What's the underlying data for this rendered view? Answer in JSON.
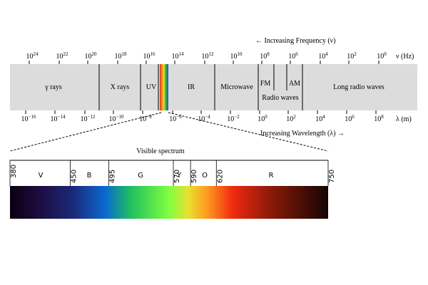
{
  "header": {
    "frequency_arrow": "← Increasing Frequency (ν)",
    "wavelength_arrow": "Increasing Wavelength (λ) →"
  },
  "frequency_axis": {
    "unit": "ν (Hz)",
    "ticks": [
      {
        "base": "10",
        "exp": "24"
      },
      {
        "base": "10",
        "exp": "22"
      },
      {
        "base": "10",
        "exp": "20"
      },
      {
        "base": "10",
        "exp": "18"
      },
      {
        "base": "10",
        "exp": "16"
      },
      {
        "base": "10",
        "exp": "14"
      },
      {
        "base": "10",
        "exp": "12"
      },
      {
        "base": "10",
        "exp": "10"
      },
      {
        "base": "10",
        "exp": "8"
      },
      {
        "base": "10",
        "exp": "6"
      },
      {
        "base": "10",
        "exp": "4"
      },
      {
        "base": "10",
        "exp": "2"
      },
      {
        "base": "10",
        "exp": "0"
      }
    ]
  },
  "wavelength_axis": {
    "unit": "λ (m)",
    "ticks": [
      {
        "base": "10",
        "exp": "−16"
      },
      {
        "base": "10",
        "exp": "−14"
      },
      {
        "base": "10",
        "exp": "−12"
      },
      {
        "base": "10",
        "exp": "−10"
      },
      {
        "base": "10",
        "exp": "−8"
      },
      {
        "base": "10",
        "exp": "−6"
      },
      {
        "base": "10",
        "exp": "−4"
      },
      {
        "base": "10",
        "exp": "−2"
      },
      {
        "base": "10",
        "exp": "0"
      },
      {
        "base": "10",
        "exp": "2"
      },
      {
        "base": "10",
        "exp": "4"
      },
      {
        "base": "10",
        "exp": "6"
      },
      {
        "base": "10",
        "exp": "8"
      }
    ]
  },
  "regions": [
    "γ rays",
    "X rays",
    "UV",
    "IR",
    "Microwave",
    "FM",
    "Radio waves",
    "AM",
    "Long radio waves"
  ],
  "visible": {
    "title": "Visible spectrum",
    "boundaries": [
      "380",
      "450",
      "495",
      "570",
      "590",
      "620",
      "750"
    ],
    "colors": [
      "V",
      "B",
      "G",
      "Y",
      "O",
      "R"
    ]
  }
}
